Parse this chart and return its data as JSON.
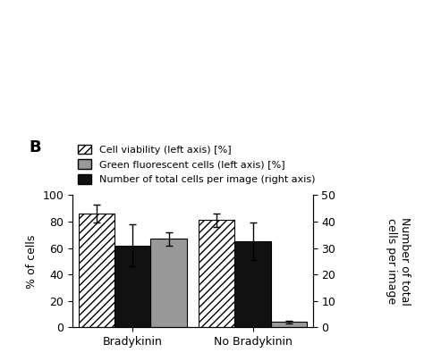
{
  "groups": [
    "Bradykinin",
    "No Bradykinin"
  ],
  "bar_labels": [
    "Cell viability (left axis) [%]",
    "Green fluorescent cells (left axis) [%]",
    "Number of total cells per image (right axis)"
  ],
  "cell_viability": [
    86,
    81
  ],
  "cell_viability_err": [
    7,
    5
  ],
  "green_fluor": [
    67,
    4
  ],
  "green_fluor_err": [
    5,
    1
  ],
  "total_cells": [
    31,
    32.5
  ],
  "total_cells_err": [
    8,
    7
  ],
  "left_ylim": [
    0,
    100
  ],
  "right_ylim": [
    0,
    50
  ],
  "left_yticks": [
    0,
    20,
    40,
    60,
    80,
    100
  ],
  "right_yticks": [
    0,
    10,
    20,
    30,
    40,
    50
  ],
  "ylabel_left": "% of cells",
  "ylabel_right": "Number of total\ncells per image",
  "viability_fill": "#ffffff",
  "green_fill": "#999999",
  "total_fill": "#111111",
  "bar_width": 0.12,
  "background_color": "#ffffff",
  "title_label": "B",
  "group_centers": [
    0.3,
    0.7
  ],
  "xlim": [
    0.1,
    0.9
  ]
}
